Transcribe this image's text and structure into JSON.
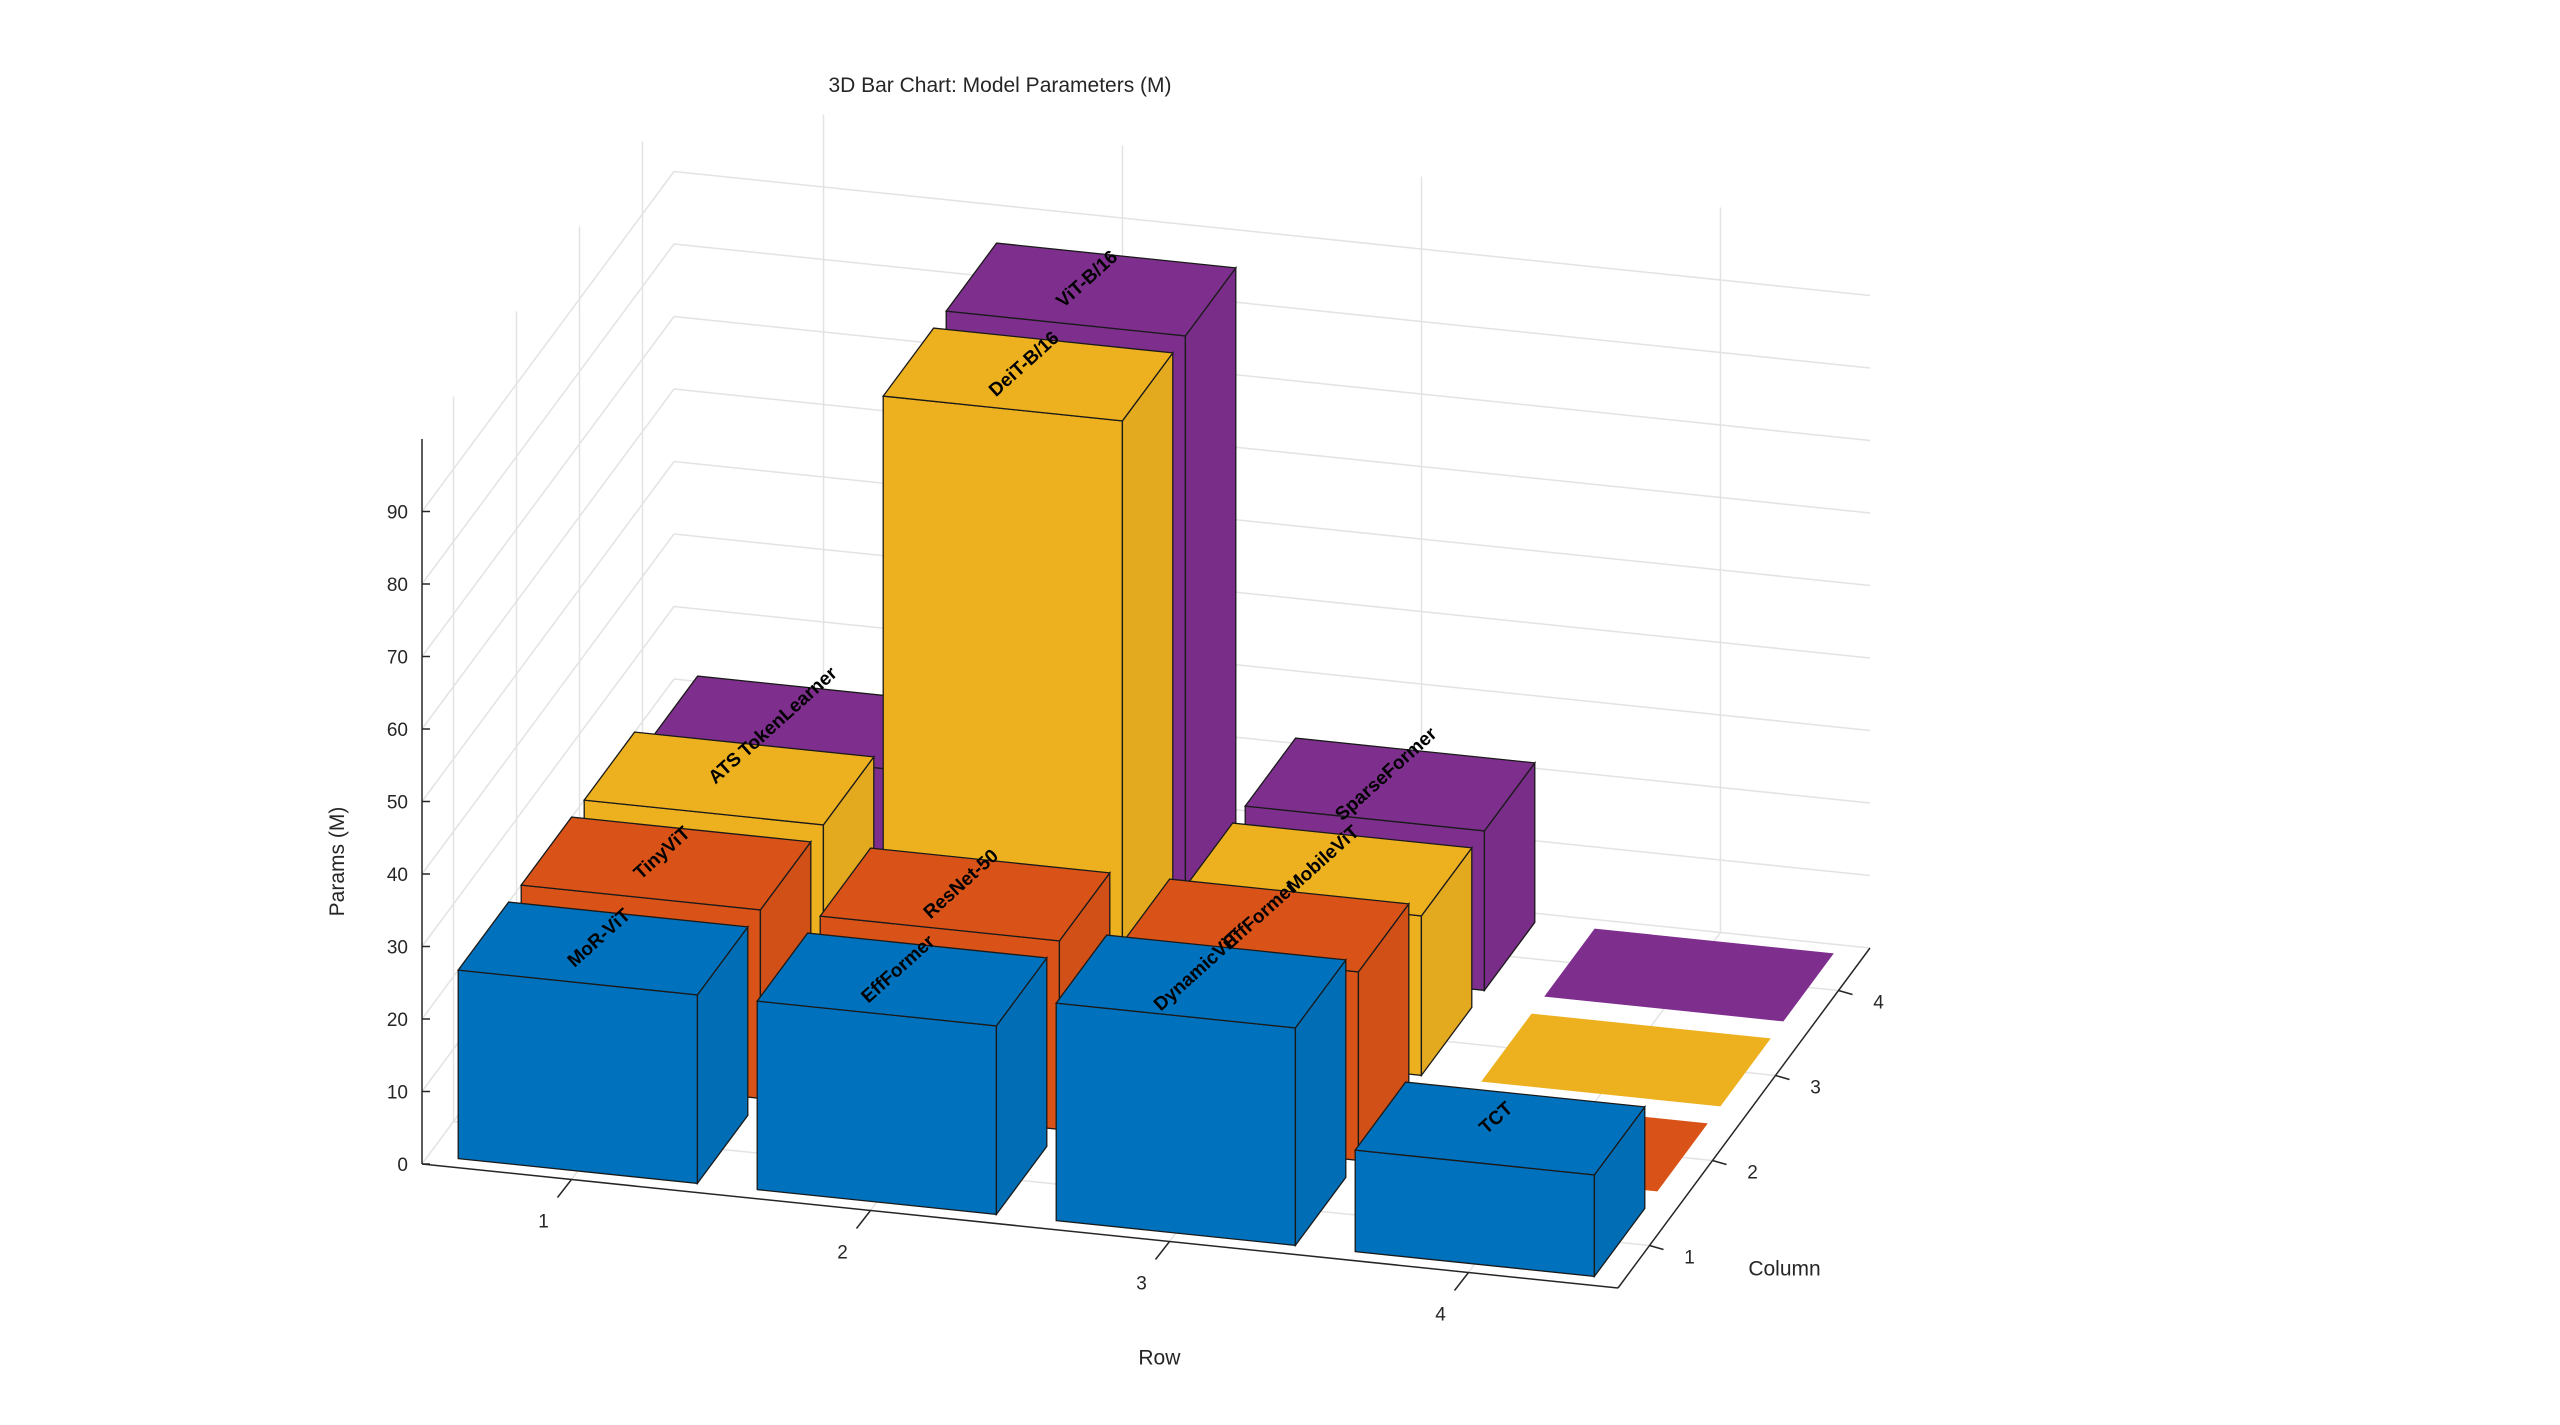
{
  "chart_data": {
    "type": "bar3d",
    "title": "3D Bar Chart: Model Parameters (M)",
    "xlabel": "Row",
    "ylabel": "Column",
    "zlabel": "Params (M)",
    "rows": [
      "1",
      "2",
      "3",
      "4"
    ],
    "columns": [
      "1",
      "2",
      "3",
      "4"
    ],
    "zticks": [
      0,
      10,
      20,
      30,
      40,
      50,
      60,
      70,
      80,
      90
    ],
    "zlim": [
      0,
      100
    ],
    "grid": true,
    "series": [
      {
        "column": 1,
        "color": "#0072BD",
        "values": [
          26,
          26,
          30,
          14
        ],
        "labels": [
          "MoR-ViT",
          "EffFormer",
          "DynamicViT",
          "TCT"
        ]
      },
      {
        "column": 2,
        "color": "#D95319",
        "values": [
          26,
          26,
          26,
          0
        ],
        "labels": [
          "TinyViT",
          "ResNet-50",
          "EffFormer",
          ""
        ]
      },
      {
        "column": 3,
        "color": "#EDB120",
        "values": [
          26,
          86,
          22,
          0
        ],
        "labels": [
          "ATS",
          "DeiT-B/16",
          "MobileViT",
          ""
        ]
      },
      {
        "column": 4,
        "color": "#7E2F8E",
        "values": [
          22,
          86,
          22,
          0
        ],
        "labels": [
          "TokenLearner",
          "ViT-B/16",
          "SparseFormer",
          ""
        ]
      }
    ]
  }
}
